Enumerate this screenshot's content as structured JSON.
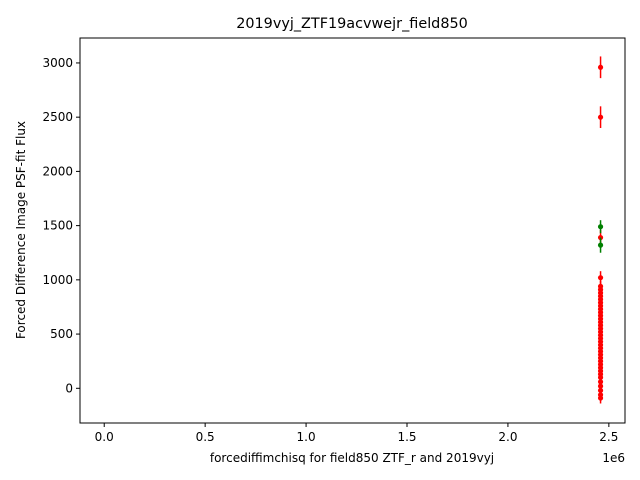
{
  "chart_data": {
    "type": "scatter",
    "title": "2019vyj_ZTF19acvwejr_field850",
    "xlabel": "forcediffimchisq for field850 ZTF_r and 2019vyj",
    "ylabel": "Forced Difference Image PSF-fit Flux",
    "x_offset_label": "1e6",
    "xlim": [
      -120000,
      2580000
    ],
    "ylim": [
      -320,
      3230
    ],
    "x_ticks": [
      0,
      500000,
      1000000,
      1500000,
      2000000,
      2500000
    ],
    "x_tick_labels": [
      "0.0",
      "0.5",
      "1.0",
      "1.5",
      "2.0",
      "2.5"
    ],
    "y_ticks": [
      0,
      500,
      1000,
      1500,
      2000,
      2500,
      3000
    ],
    "y_tick_labels": [
      "0",
      "500",
      "1000",
      "1500",
      "2000",
      "2500",
      "3000"
    ],
    "grid": false,
    "series": [
      {
        "color": "#ff0000",
        "points": [
          {
            "x": 2458900,
            "y": 2960,
            "err": 100
          },
          {
            "x": 2458900,
            "y": 2500,
            "err": 100
          },
          {
            "x": 2458900,
            "y": 1390,
            "err": 70
          },
          {
            "x": 2458900,
            "y": 1020,
            "err": 60
          },
          {
            "x": 2458900,
            "y": 940,
            "err": 50
          },
          {
            "x": 2458900,
            "y": 910,
            "err": 50
          },
          {
            "x": 2458900,
            "y": 880,
            "err": 50
          },
          {
            "x": 2458900,
            "y": 850,
            "err": 50
          },
          {
            "x": 2458900,
            "y": 820,
            "err": 50
          },
          {
            "x": 2458900,
            "y": 790,
            "err": 50
          },
          {
            "x": 2458900,
            "y": 760,
            "err": 50
          },
          {
            "x": 2458900,
            "y": 730,
            "err": 50
          },
          {
            "x": 2458900,
            "y": 700,
            "err": 50
          },
          {
            "x": 2458900,
            "y": 670,
            "err": 50
          },
          {
            "x": 2458900,
            "y": 640,
            "err": 50
          },
          {
            "x": 2458900,
            "y": 610,
            "err": 50
          },
          {
            "x": 2458900,
            "y": 580,
            "err": 50
          },
          {
            "x": 2458900,
            "y": 550,
            "err": 50
          },
          {
            "x": 2458900,
            "y": 520,
            "err": 50
          },
          {
            "x": 2458900,
            "y": 490,
            "err": 50
          },
          {
            "x": 2458900,
            "y": 460,
            "err": 50
          },
          {
            "x": 2458900,
            "y": 430,
            "err": 50
          },
          {
            "x": 2458900,
            "y": 400,
            "err": 50
          },
          {
            "x": 2458900,
            "y": 370,
            "err": 50
          },
          {
            "x": 2458900,
            "y": 340,
            "err": 50
          },
          {
            "x": 2458900,
            "y": 310,
            "err": 50
          },
          {
            "x": 2458900,
            "y": 280,
            "err": 50
          },
          {
            "x": 2458900,
            "y": 250,
            "err": 50
          },
          {
            "x": 2458900,
            "y": 220,
            "err": 50
          },
          {
            "x": 2458900,
            "y": 190,
            "err": 50
          },
          {
            "x": 2458900,
            "y": 160,
            "err": 50
          },
          {
            "x": 2458900,
            "y": 130,
            "err": 50
          },
          {
            "x": 2458900,
            "y": 100,
            "err": 50
          },
          {
            "x": 2458900,
            "y": 60,
            "err": 50
          },
          {
            "x": 2458900,
            "y": 20,
            "err": 50
          },
          {
            "x": 2458900,
            "y": -20,
            "err": 50
          },
          {
            "x": 2458900,
            "y": -60,
            "err": 50
          },
          {
            "x": 2458900,
            "y": -90,
            "err": 50
          }
        ]
      },
      {
        "color": "#008000",
        "points": [
          {
            "x": 2458900,
            "y": 1490,
            "err": 60
          },
          {
            "x": 2458900,
            "y": 1320,
            "err": 70
          }
        ]
      }
    ]
  }
}
